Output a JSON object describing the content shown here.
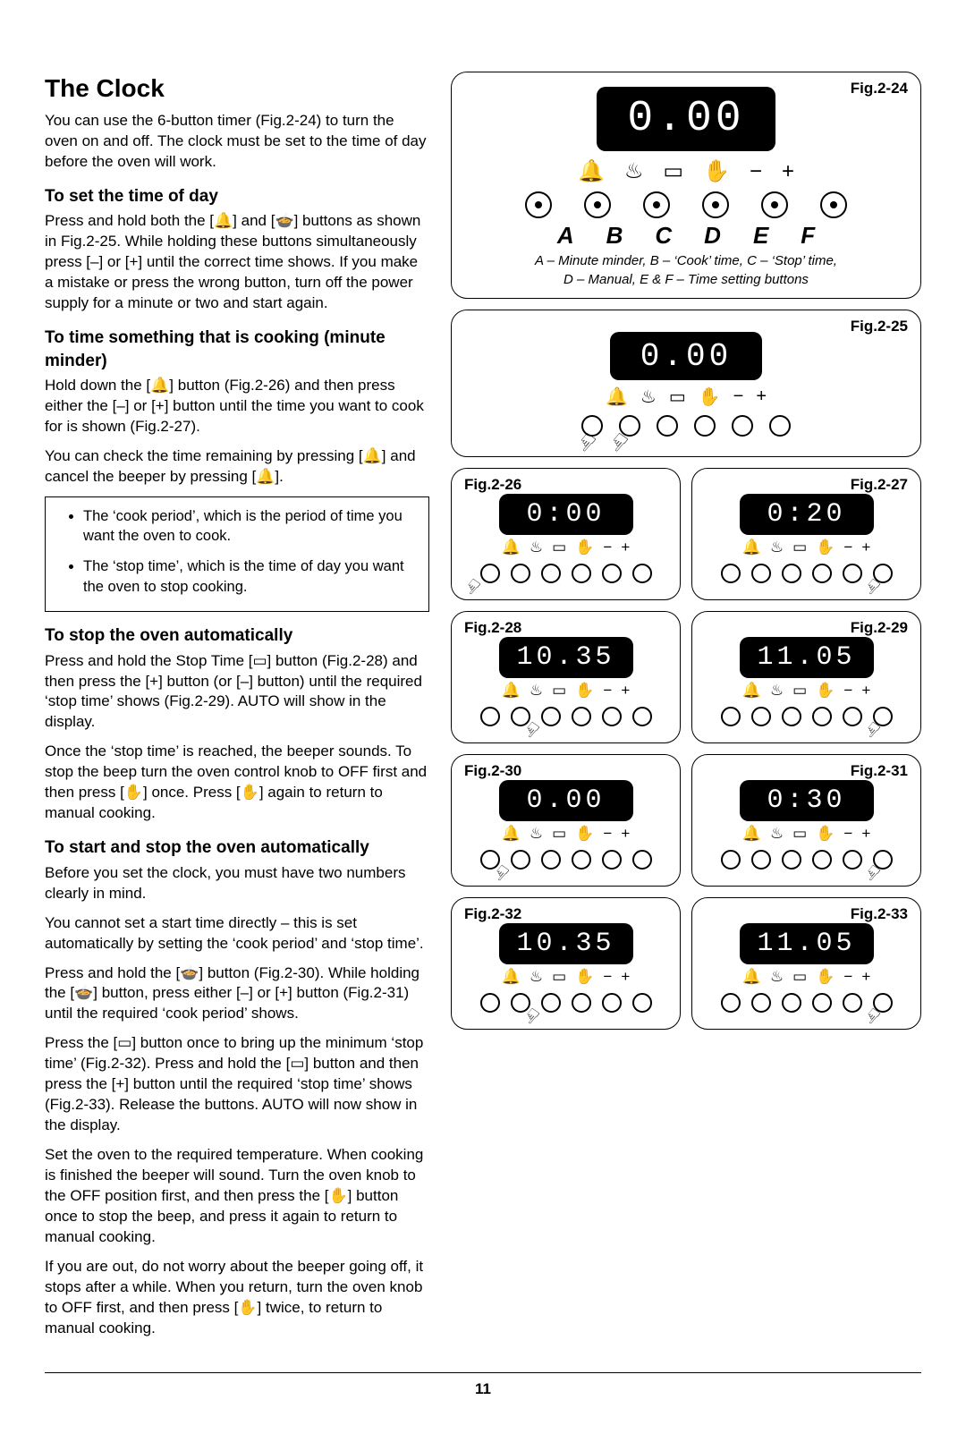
{
  "page_number": "11",
  "title": "The Clock",
  "intro": "You can use the 6-button timer (Fig.2-24) to turn the oven on and off. The clock must be set to the time of day before the oven will work.",
  "sections": {
    "setTime": {
      "heading": "To set the time of day",
      "body": "Press and hold both the [🔔] and [🍲] buttons as shown in Fig.2-25. While holding these buttons simultaneously press [–] or [+] until the correct time shows. If you make a mistake or press the wrong button, turn off the power supply for a minute or two and start again."
    },
    "minuteMinder": {
      "heading": "To time something that is cooking (minute minder)",
      "p1": "Hold down the [🔔] button (Fig.2-26) and then press either the [–] or [+] button until the time you want to cook for is shown (Fig.2-27).",
      "p2": "You can check the time remaining by pressing [🔔] and cancel the beeper by pressing [🔔].",
      "bullets": [
        "The ‘cook period’, which is the period of time you want the oven to cook.",
        "The ‘stop time’, which is the time of day you want the oven to stop cooking."
      ]
    },
    "stopAuto": {
      "heading": "To stop the oven automatically",
      "p1": "Press and hold the Stop Time [▭] button (Fig.2-28) and then press the [+] button (or [–] button) until the required ‘stop time’ shows (Fig.2-29). AUTO will show in the display.",
      "p2": "Once the ‘stop time’ is reached, the beeper sounds. To stop the beep turn the oven control knob to OFF first and then press [✋] once. Press [✋] again to return to manual cooking."
    },
    "startStopAuto": {
      "heading": "To start and stop the oven automatically",
      "p1": "Before you set the clock, you must have two numbers clearly in mind.",
      "p2": "You cannot set a start time directly – this is set automatically by setting the ‘cook period’ and ‘stop time’.",
      "p3": "Press and hold the [🍲] button (Fig.2-30). While holding the [🍲] button, press either [–] or [+] button (Fig.2-31) until the required ‘cook period’ shows.",
      "p4": "Press the [▭] button once to bring up the minimum ‘stop time’ (Fig.2-32). Press and hold the [▭] button and then press the [+] button until the required ‘stop time’ shows (Fig.2-33). Release the buttons. AUTO will now show in the display.",
      "p5": "Set the oven to the required temperature. When cooking is finished the beeper will sound. Turn the oven knob to the OFF position first, and then press the [✋] button once to stop the beep, and press it again to return to manual cooking.",
      "p6": "If you are out, do not worry about the beeper going off, it stops after a while. When you return, turn the oven knob to OFF first, and then press [✋] twice, to return to manual cooking."
    }
  },
  "icons": {
    "bell": "🔔",
    "pot": "♨",
    "stop": "▭",
    "hand": "✋",
    "minus": "−",
    "plus": "+"
  },
  "main_panel": {
    "label": "Fig.2-24",
    "display": "0.00",
    "letters": [
      "A",
      "B",
      "C",
      "D",
      "E",
      "F"
    ],
    "legend1": "A – Minute minder,  B – ‘Cook’ time,  C – ‘Stop’ time,",
    "legend2": "D – Manual,  E & F – Time setting buttons"
  },
  "panel25": {
    "label": "Fig.2-25",
    "display": "0.00"
  },
  "small_panels": [
    {
      "label": "Fig.2-26",
      "display": "0:00",
      "side": "tl"
    },
    {
      "label": "Fig.2-27",
      "display": "0:20",
      "side": "tr"
    },
    {
      "label": "Fig.2-28",
      "display": "10.35",
      "side": "tl"
    },
    {
      "label": "Fig.2-29",
      "display": "11.05",
      "side": "tr"
    },
    {
      "label": "Fig.2-30",
      "display": "0.00",
      "side": "tl"
    },
    {
      "label": "Fig.2-31",
      "display": "0:30",
      "side": "tr"
    },
    {
      "label": "Fig.2-32",
      "display": "10.35",
      "side": "tl"
    },
    {
      "label": "Fig.2-33",
      "display": "11.05",
      "side": "tr"
    }
  ],
  "colors": {
    "display_bg": "#000000",
    "display_fg": "#ffffff",
    "page_bg": "#ffffff",
    "line": "#000000"
  }
}
